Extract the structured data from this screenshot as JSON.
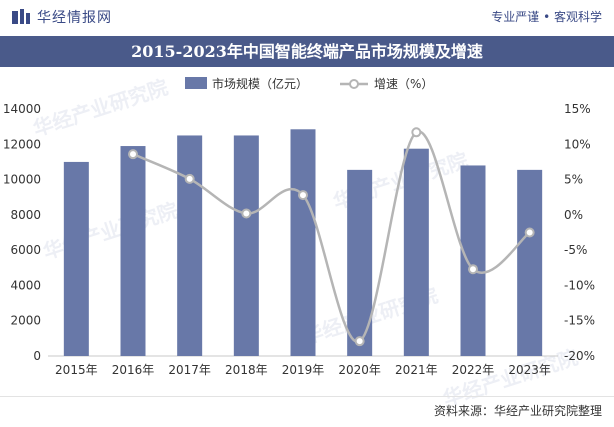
{
  "header": {
    "brand": "华经情报网",
    "slogan": "专业严谨 • 客观科学"
  },
  "watermark": {
    "text": "华经产业研究院"
  },
  "footer": {
    "source": "资料来源：华经产业研究院整理"
  },
  "colors": {
    "bar": "#6878a8",
    "line": "#b5b5b5",
    "marker_fill": "#ffffff",
    "title_bg": "#4a5a8a"
  },
  "chart_data": {
    "type": "bar",
    "title": "2015-2023年中国智能终端产品市场规模及增速",
    "categories": [
      "2015年",
      "2016年",
      "2017年",
      "2018年",
      "2019年",
      "2020年",
      "2021年",
      "2022年",
      "2023年"
    ],
    "series": [
      {
        "name": "市场规模（亿元）",
        "type": "bar",
        "axis": "left",
        "values": [
          11000,
          11900,
          12500,
          12500,
          12850,
          10550,
          11750,
          10800,
          10550
        ]
      },
      {
        "name": "增速（%）",
        "type": "line",
        "axis": "right",
        "smooth": true,
        "values": [
          null,
          8.6,
          5.1,
          0.2,
          2.8,
          -17.9,
          11.7,
          -7.7,
          -2.5
        ]
      }
    ],
    "y_left": {
      "ylim": [
        0,
        14000
      ],
      "ticks": [
        "0",
        "2000",
        "4000",
        "6000",
        "8000",
        "10000",
        "12000",
        "14000"
      ]
    },
    "y_right": {
      "ylim": [
        -20,
        15
      ],
      "ticks": [
        "-20%",
        "-15%",
        "-10%",
        "-5%",
        "0%",
        "5%",
        "10%",
        "15%"
      ]
    },
    "legend": "top-center",
    "grid": false
  }
}
